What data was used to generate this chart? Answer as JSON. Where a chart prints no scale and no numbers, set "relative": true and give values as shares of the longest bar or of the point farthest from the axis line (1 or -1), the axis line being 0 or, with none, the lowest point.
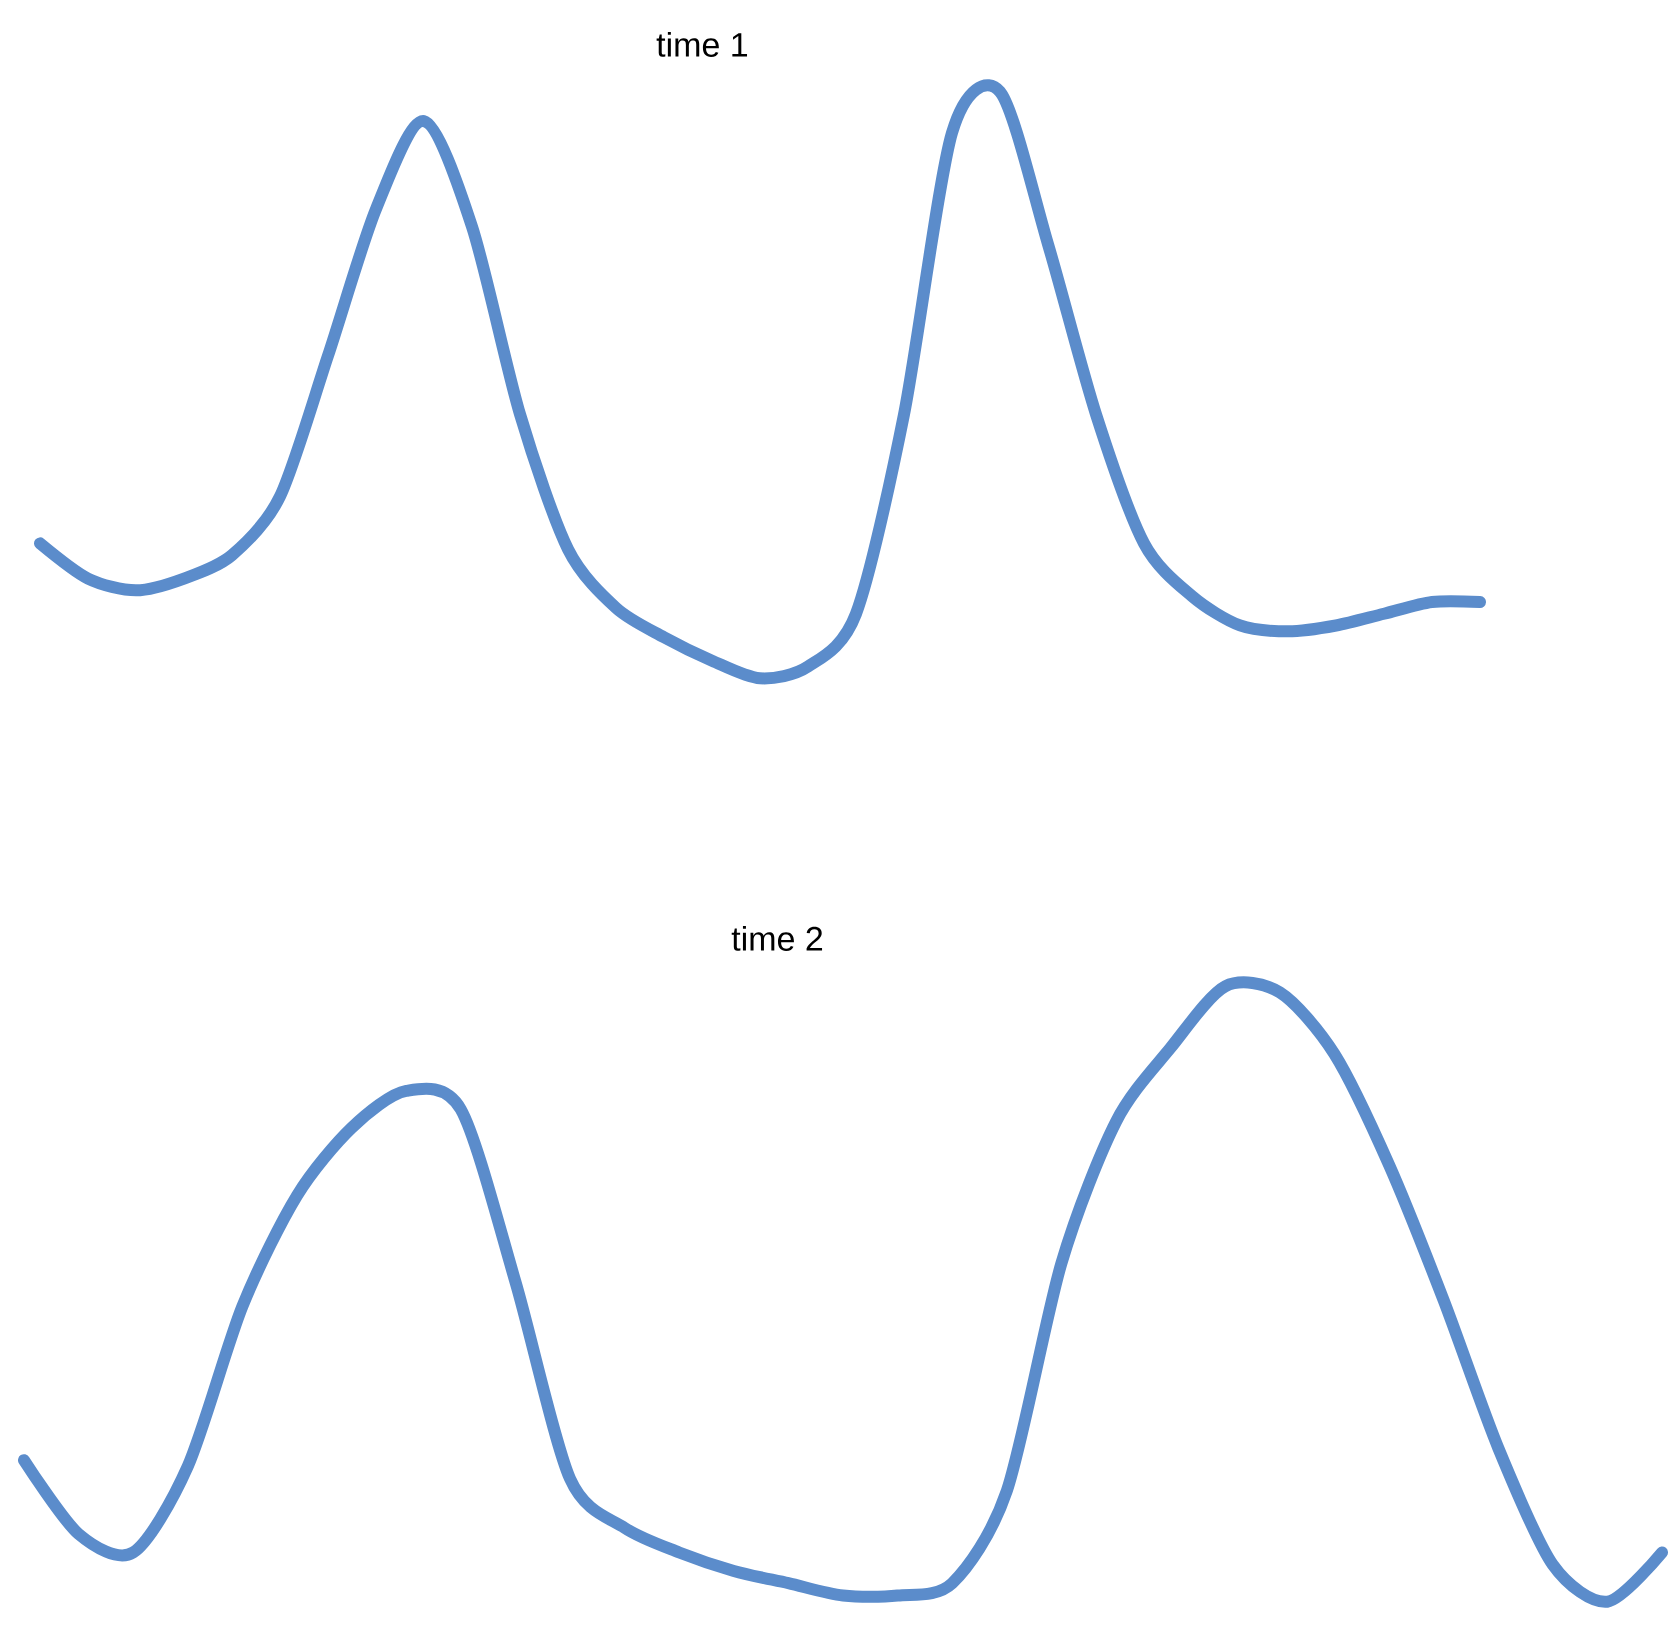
{
  "chart_data": [
    {
      "type": "line",
      "title": "time 1",
      "relative": true,
      "color": "#5b8ccb",
      "categories": [
        null,
        null,
        null,
        null,
        null,
        null,
        null,
        null,
        null,
        null,
        null,
        null,
        null,
        null,
        null,
        null,
        null,
        null,
        null,
        null,
        null,
        null,
        null,
        null,
        null,
        null,
        null,
        null,
        null,
        null,
        null
      ],
      "values": [
        0.23,
        0.17,
        0.15,
        0.17,
        0.21,
        0.31,
        0.55,
        0.8,
        0.95,
        0.77,
        0.45,
        0.22,
        0.12,
        0.07,
        0.03,
        0.0,
        0.02,
        0.11,
        0.45,
        0.93,
        1.0,
        0.74,
        0.45,
        0.23,
        0.14,
        0.09,
        0.08,
        0.09,
        0.11,
        0.13,
        0.13
      ]
    },
    {
      "type": "line",
      "title": "time 2",
      "relative": true,
      "color": "#5b8ccb",
      "categories": [
        null,
        null,
        null,
        null,
        null,
        null,
        null,
        null,
        null,
        null,
        null,
        null,
        null,
        null,
        null,
        null,
        null,
        null,
        null,
        null,
        null,
        null,
        null,
        null,
        null,
        null,
        null,
        null,
        null,
        null,
        null
      ],
      "values": [
        0.23,
        0.11,
        0.08,
        0.22,
        0.48,
        0.66,
        0.77,
        0.83,
        0.8,
        0.52,
        0.2,
        0.12,
        0.08,
        0.05,
        0.03,
        0.01,
        0.01,
        0.03,
        0.18,
        0.55,
        0.78,
        0.9,
        1.0,
        0.99,
        0.89,
        0.71,
        0.49,
        0.25,
        0.06,
        0.0,
        0.08
      ]
    }
  ]
}
